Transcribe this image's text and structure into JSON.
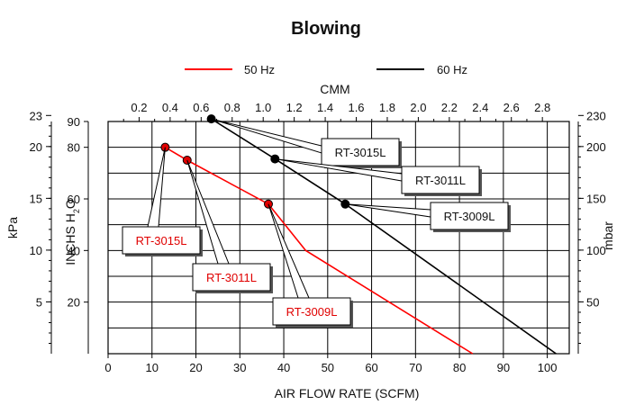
{
  "chart_data": {
    "type": "line",
    "title": "Blowing",
    "xlabel": "AIR FLOW RATE (SCFM)",
    "x2label": "CMM",
    "ylabel": "INCHS  H",
    "ylabel_sub": "2",
    "ylabel_tail": "O",
    "y_kpa_label": "kPa",
    "y_mbar_label": "mbar",
    "xlim": [
      0,
      105
    ],
    "ylim": [
      0,
      90
    ],
    "x_ticks": [
      "0",
      "10",
      "20",
      "30",
      "40",
      "50",
      "60",
      "70",
      "80",
      "90",
      "100"
    ],
    "cmm_ticks": [
      "0.2",
      "0.4",
      "0.6",
      "0.8",
      "1.0",
      "1.2",
      "1.4",
      "1.6",
      "1.8",
      "2.0",
      "2.2",
      "2.4",
      "2.6",
      "2.8"
    ],
    "y_ticks": [
      "20",
      "40",
      "60",
      "80",
      "90"
    ],
    "kpa_ticks": [
      "5",
      "10",
      "15",
      "20",
      "23"
    ],
    "mbar_ticks": [
      "50",
      "100",
      "150",
      "200",
      "230"
    ],
    "grid": true,
    "legend_position": "top",
    "series": [
      {
        "name": "50 Hz",
        "color": "#ff0000",
        "x": [
          13,
          18,
          36.5,
          45,
          83
        ],
        "y": [
          80,
          75,
          58,
          40,
          0
        ],
        "points": [
          {
            "x": 13,
            "y": 80,
            "label": "RT-3015L"
          },
          {
            "x": 18,
            "y": 75,
            "label": "RT-3011L"
          },
          {
            "x": 36.5,
            "y": 58,
            "label": "RT-3009L"
          }
        ]
      },
      {
        "name": "60 Hz",
        "color": "#000000",
        "x": [
          23.5,
          38,
          54,
          102
        ],
        "y": [
          91,
          75.5,
          58,
          0
        ],
        "points": [
          {
            "x": 23.5,
            "y": 91,
            "label": "RT-3015L"
          },
          {
            "x": 38,
            "y": 75.5,
            "label": "RT-3011L"
          },
          {
            "x": 54,
            "y": 58,
            "label": "RT-3009L"
          }
        ]
      }
    ]
  }
}
